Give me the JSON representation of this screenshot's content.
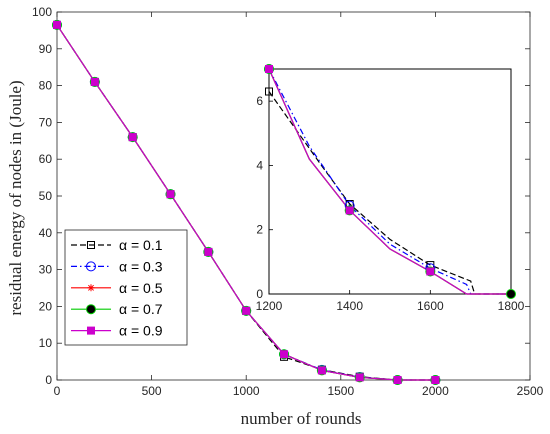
{
  "chart_data": [
    {
      "type": "line",
      "xlabel": "number of rounds",
      "ylabel": "residual energy of nodes in (Joule)",
      "xlim": [
        0,
        2500
      ],
      "ylim": [
        0,
        100
      ],
      "xticks": [
        "0",
        "500",
        "1000",
        "1500",
        "2000",
        "2500"
      ],
      "yticks": [
        "0",
        "10",
        "20",
        "30",
        "40",
        "50",
        "60",
        "70",
        "80",
        "90",
        "100"
      ],
      "grid": false,
      "legend_position": "bottom-left",
      "x": [
        0,
        200,
        400,
        600,
        800,
        1000,
        1200,
        1400,
        1600,
        1800,
        2000
      ],
      "series": [
        {
          "name": "α = 0.1",
          "color": "#000000",
          "line": "dashed",
          "marker": "square-open",
          "values": [
            96.5,
            81,
            66,
            50.5,
            34.8,
            18.8,
            6.3,
            2.8,
            0.9,
            0,
            0
          ]
        },
        {
          "name": "α = 0.3",
          "color": "#0000ff",
          "line": "dashdot",
          "marker": "circle-open",
          "values": [
            96.5,
            81,
            66,
            50.5,
            34.8,
            18.8,
            7.0,
            2.75,
            0.8,
            0,
            0
          ]
        },
        {
          "name": "α = 0.5",
          "color": "#ff0000",
          "line": "solid",
          "marker": "asterisk",
          "values": [
            96.5,
            81,
            66,
            50.5,
            34.8,
            18.8,
            7.0,
            2.6,
            0.7,
            0,
            0
          ]
        },
        {
          "name": "α = 0.7",
          "color": "#00cc00",
          "line": "solid",
          "marker": "circle-filled",
          "values": [
            96.5,
            81,
            66,
            50.5,
            34.8,
            18.8,
            7.0,
            2.6,
            0.7,
            0,
            0
          ]
        },
        {
          "name": "α = 0.9",
          "color": "#cc00cc",
          "line": "solid",
          "marker": "square-filled",
          "values": [
            96.5,
            81,
            66,
            50.5,
            34.8,
            18.8,
            7.0,
            2.6,
            0.7,
            0,
            0
          ]
        }
      ]
    },
    {
      "type": "line",
      "role": "inset",
      "xlim": [
        1200,
        1800
      ],
      "ylim": [
        0,
        7
      ],
      "xticks": [
        "1200",
        "1400",
        "1600",
        "1800"
      ],
      "yticks": [
        "0",
        "2",
        "4",
        "6"
      ],
      "series": [
        {
          "name": "α = 0.1",
          "points": [
            [
              1200,
              6.3
            ],
            [
              1330,
              4.0
            ],
            [
              1400,
              2.8
            ],
            [
              1500,
              1.7
            ],
            [
              1600,
              0.9
            ],
            [
              1700,
              0.4
            ],
            [
              1710,
              0
            ],
            [
              1800,
              0
            ]
          ],
          "markers": [
            [
              1200,
              6.3
            ],
            [
              1400,
              2.8
            ],
            [
              1600,
              0.9
            ]
          ]
        },
        {
          "name": "α = 0.3",
          "points": [
            [
              1200,
              7.0
            ],
            [
              1300,
              4.6
            ],
            [
              1400,
              2.75
            ],
            [
              1500,
              1.55
            ],
            [
              1600,
              0.8
            ],
            [
              1690,
              0.3
            ],
            [
              1700,
              0
            ],
            [
              1800,
              0
            ]
          ],
          "markers": [
            [
              1200,
              7.0
            ],
            [
              1400,
              2.75
            ],
            [
              1600,
              0.8
            ]
          ]
        },
        {
          "name": "α = 0.5",
          "points": [
            [
              1200,
              7.0
            ],
            [
              1300,
              4.2
            ],
            [
              1400,
              2.6
            ],
            [
              1500,
              1.4
            ],
            [
              1600,
              0.7
            ],
            [
              1690,
              0
            ],
            [
              1800,
              0
            ]
          ],
          "markers": [
            [
              1200,
              7.0
            ],
            [
              1400,
              2.6
            ],
            [
              1600,
              0.7
            ]
          ]
        },
        {
          "name": "α = 0.7",
          "points": [
            [
              1200,
              7.0
            ],
            [
              1300,
              4.2
            ],
            [
              1400,
              2.6
            ],
            [
              1500,
              1.4
            ],
            [
              1600,
              0.7
            ],
            [
              1690,
              0
            ],
            [
              1800,
              0
            ]
          ],
          "markers": [
            [
              1200,
              7.0
            ],
            [
              1400,
              2.6
            ],
            [
              1600,
              0.7
            ],
            [
              1800,
              0
            ]
          ]
        },
        {
          "name": "α = 0.9",
          "points": [
            [
              1200,
              7.0
            ],
            [
              1300,
              4.2
            ],
            [
              1400,
              2.6
            ],
            [
              1500,
              1.4
            ],
            [
              1600,
              0.7
            ],
            [
              1690,
              0
            ],
            [
              1800,
              0
            ]
          ],
          "markers": [
            [
              1200,
              7.0
            ],
            [
              1400,
              2.6
            ],
            [
              1600,
              0.7
            ]
          ]
        }
      ]
    }
  ]
}
